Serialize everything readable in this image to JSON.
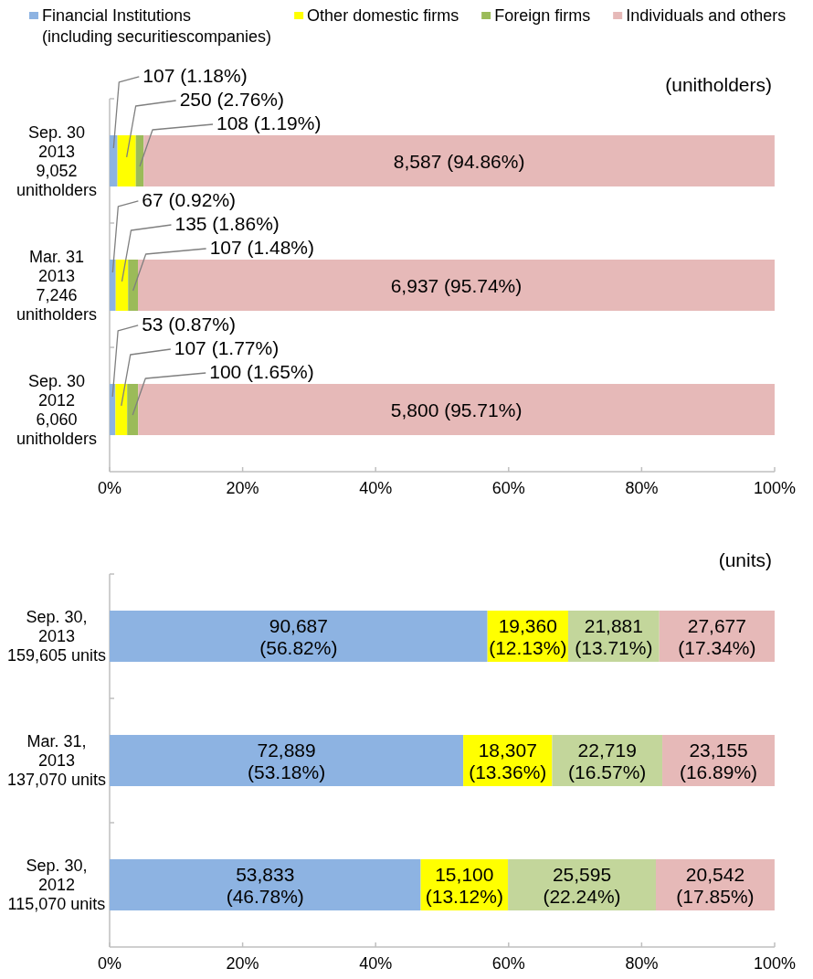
{
  "chart_data": [
    {
      "type": "bar",
      "orientation": "horizontal",
      "stacked": true,
      "legend": "top",
      "categories": [
        "Sep. 30\n2013\n9,052\nunitholders",
        "Mar. 31\n2013\n7,246\nunitholders",
        "Sep. 30\n2012\n6,060\nunitholders"
      ],
      "series": [
        {
          "name": "Financial Institutions\n(including securitiescompanies)",
          "color": "#8db3e2",
          "values": [
            1.18,
            0.92,
            0.87
          ],
          "value_labels": [
            "107 (1.18%)",
            "67 (0.92%)",
            "53 (0.87%)"
          ]
        },
        {
          "name": "Other domestic firms",
          "color": "#ffff00",
          "values": [
            2.76,
            1.86,
            1.77
          ],
          "value_labels": [
            "250 (2.76%)",
            "135 (1.86%)",
            "107 (1.77%)"
          ]
        },
        {
          "name": "Foreign firms",
          "color": "#9bbb59",
          "values": [
            1.19,
            1.48,
            1.65
          ],
          "value_labels": [
            "108 (1.19%)",
            "107 (1.48%)",
            "100 (1.65%)"
          ]
        },
        {
          "name": "Individuals and others",
          "color": "#e6b9b8",
          "values": [
            94.86,
            95.74,
            95.71
          ],
          "value_labels": [
            "8,587 (94.86%)",
            "6,937 (95.74%)",
            "5,800 (95.71%)"
          ]
        }
      ],
      "xlim": [
        0,
        100
      ],
      "xticks": [
        {
          "value": 0,
          "label": "0%"
        },
        {
          "value": 20,
          "label": "20%"
        },
        {
          "value": 40,
          "label": "40%"
        },
        {
          "value": 60,
          "label": "60%"
        },
        {
          "value": 80,
          "label": "80%"
        },
        {
          "value": 100,
          "label": "100%"
        }
      ],
      "annotations": [
        "(unitholders)"
      ]
    },
    {
      "type": "bar",
      "orientation": "horizontal",
      "stacked": true,
      "categories": [
        "Sep. 30,\n2013\n159,605 units",
        "Mar. 31,\n2013\n137,070 units",
        "Sep. 30,\n2012\n115,070 units"
      ],
      "series": [
        {
          "color": "#8db3e2",
          "values": [
            56.82,
            53.18,
            46.78
          ],
          "value_labels": [
            "90,687\n(56.82%)",
            "72,889\n(53.18%)",
            "53,833\n(46.78%)"
          ]
        },
        {
          "color": "#ffff00",
          "values": [
            12.13,
            13.36,
            13.12
          ],
          "value_labels": [
            "19,360\n(12.13%)",
            "18,307\n(13.36%)",
            "15,100\n(13.12%)"
          ]
        },
        {
          "color": "#c3d69b",
          "values": [
            13.71,
            16.57,
            22.24
          ],
          "value_labels": [
            "21,881\n(13.71%)",
            "22,719\n(16.57%)",
            "25,595\n(22.24%)"
          ]
        },
        {
          "color": "#e6b9b8",
          "values": [
            17.34,
            16.89,
            17.85
          ],
          "value_labels": [
            "27,677\n(17.34%)",
            "23,155\n(16.89%)",
            "20,542\n(17.85%)"
          ]
        }
      ],
      "xlim": [
        0,
        100
      ],
      "xticks": [
        {
          "value": 0,
          "label": "0%"
        },
        {
          "value": 20,
          "label": "20%"
        },
        {
          "value": 40,
          "label": "40%"
        },
        {
          "value": 60,
          "label": "60%"
        },
        {
          "value": 80,
          "label": "80%"
        },
        {
          "value": 100,
          "label": "100%"
        }
      ],
      "annotations": [
        "(units)"
      ]
    }
  ]
}
